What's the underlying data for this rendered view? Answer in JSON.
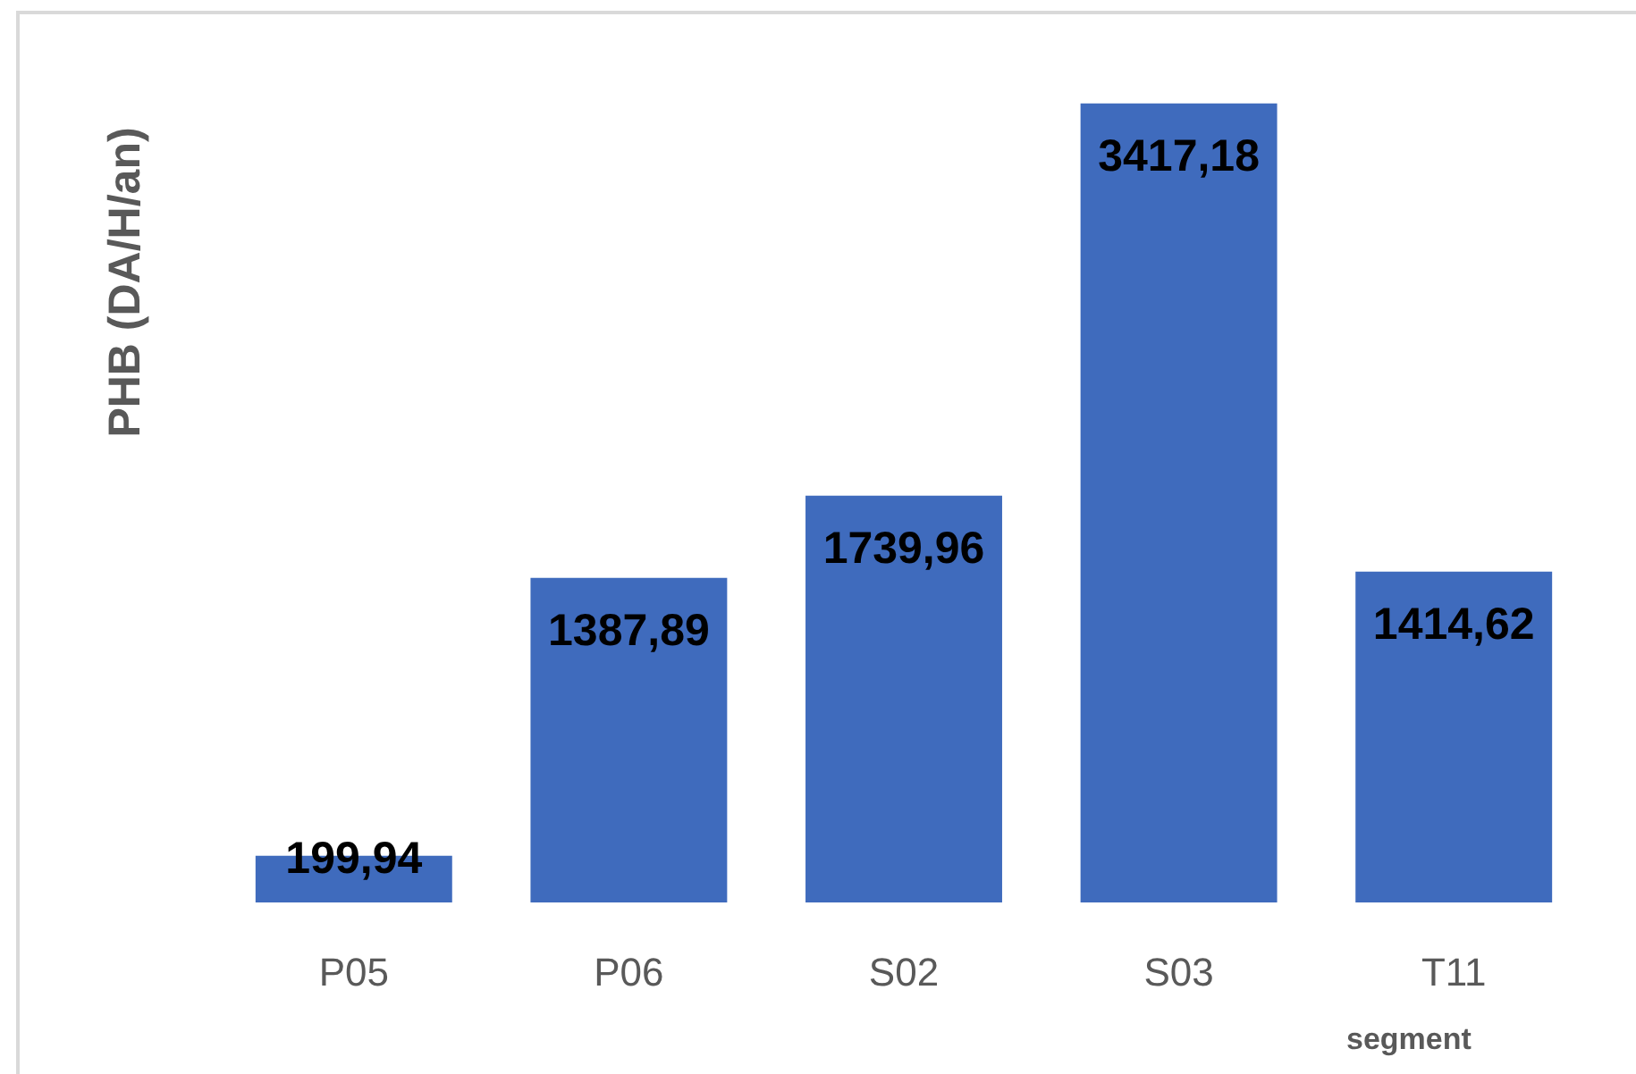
{
  "chart_data": {
    "type": "bar",
    "xlabel": "segment",
    "ylabel": "PHB (DA/H/an)",
    "categories": [
      "P05",
      "P06",
      "S02",
      "S03",
      "T11"
    ],
    "values": [
      199.94,
      1387.89,
      1739.96,
      3417.18,
      1414.62
    ],
    "value_labels": [
      "199,94",
      "1387,89",
      "1739,96",
      "3417,18",
      "1414,62"
    ],
    "color": "#3f6bbd"
  }
}
